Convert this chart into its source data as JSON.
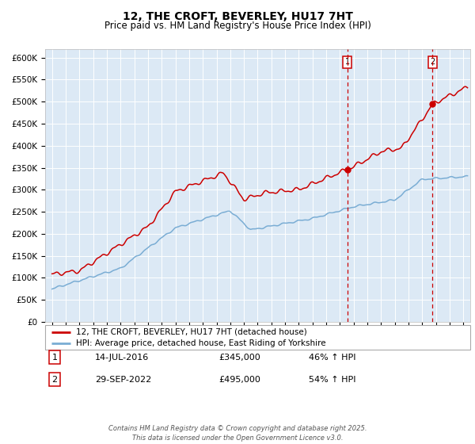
{
  "title": "12, THE CROFT, BEVERLEY, HU17 7HT",
  "subtitle": "Price paid vs. HM Land Registry's House Price Index (HPI)",
  "bg_color": "#dce9f5",
  "red_line_label": "12, THE CROFT, BEVERLEY, HU17 7HT (detached house)",
  "blue_line_label": "HPI: Average price, detached house, East Riding of Yorkshire",
  "annotation1_date": "14-JUL-2016",
  "annotation1_price": "£345,000",
  "annotation1_hpi": "46% ↑ HPI",
  "annotation2_date": "29-SEP-2022",
  "annotation2_price": "£495,000",
  "annotation2_hpi": "54% ↑ HPI",
  "vline1_x": 2016.54,
  "vline2_x": 2022.75,
  "point1_x": 2016.54,
  "point1_y": 345000,
  "point2_x": 2022.75,
  "point2_y": 495000,
  "ylim": [
    0,
    620000
  ],
  "xlim": [
    1994.5,
    2025.5
  ],
  "footer": "Contains HM Land Registry data © Crown copyright and database right 2025.\nThis data is licensed under the Open Government Licence v3.0.",
  "red_color": "#cc0000",
  "blue_color": "#7aadd4",
  "vline_color": "#cc0000",
  "grid_color": "#ffffff",
  "label_box_color": "#cc0000"
}
